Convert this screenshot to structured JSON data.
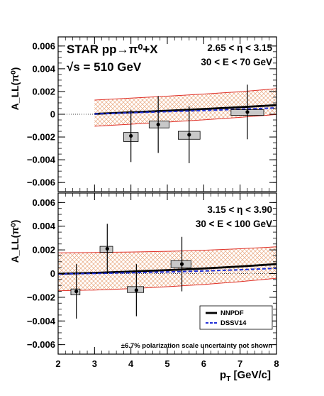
{
  "chart_data": [
    {
      "type": "scatter",
      "panel": "top",
      "title_lines": [
        "STAR pp→π⁰+X",
        "√s = 510 GeV"
      ],
      "annotation_lines": [
        "2.65 < η < 3.15",
        "30 < E < 70 GeV"
      ],
      "ylabel": "A_LL(π⁰)",
      "ylim": [
        -0.0068,
        0.0068
      ],
      "yticks": [
        "0.006",
        "0.004",
        "0.002",
        "0",
        "−0.002",
        "−0.004",
        "−0.006"
      ],
      "ytick_values": [
        0.006,
        0.004,
        0.002,
        0,
        -0.002,
        -0.004,
        -0.006
      ],
      "series": [
        {
          "name": "data",
          "x": [
            4.0,
            4.75,
            5.6,
            7.2
          ],
          "y": [
            -0.0019,
            -0.0009,
            -0.0018,
            0.0002
          ],
          "stat_err": [
            0.0023,
            0.0025,
            0.0025,
            0.0024
          ],
          "sys_box": [
            {
              "x0": 3.8,
              "x1": 4.2,
              "y0": -0.0024,
              "y1": -0.0016
            },
            {
              "x0": 4.5,
              "x1": 5.05,
              "y0": -0.0012,
              "y1": -0.0006
            },
            {
              "x0": 5.3,
              "x1": 5.9,
              "y0": -0.0022,
              "y1": -0.0015
            },
            {
              "x0": 6.75,
              "x1": 7.65,
              "y0": -0.0001,
              "y1": 0.0004
            }
          ]
        }
      ],
      "theory": {
        "x": [
          3.0,
          4.0,
          5.0,
          6.0,
          7.0,
          8.0
        ],
        "nnpdf": [
          3e-05,
          0.00017,
          0.00031,
          0.00046,
          0.00062,
          0.0008
        ],
        "dssv14": [
          3e-05,
          0.00013,
          0.00023,
          0.00033,
          0.00044,
          0.00056
        ],
        "band_upper": [
          0.00125,
          0.00142,
          0.00159,
          0.00178,
          0.00198,
          0.00225
        ],
        "band_lower": [
          -0.00105,
          -0.00087,
          -0.00069,
          -0.00049,
          -0.00027,
          -2e-05
        ]
      },
      "zero_line_dotted_xmax": 3.0
    },
    {
      "type": "scatter",
      "panel": "bottom",
      "annotation_lines": [
        "3.15 < η < 3.90",
        "30 < E < 100 GeV"
      ],
      "ylabel": "A_LL(π⁰)",
      "xlabel": "p_T [GeV/c]",
      "xlim": [
        2,
        8
      ],
      "xticks": [
        "2",
        "3",
        "4",
        "5",
        "6",
        "7",
        "8"
      ],
      "xtick_values": [
        2,
        3,
        4,
        5,
        6,
        7,
        8
      ],
      "ylim": [
        -0.0068,
        0.0068
      ],
      "yticks": [
        "0.006",
        "0.004",
        "0.002",
        "0",
        "−0.002",
        "−0.004",
        "−0.006"
      ],
      "ytick_values": [
        0.006,
        0.004,
        0.002,
        0,
        -0.002,
        -0.004,
        -0.006
      ],
      "series": [
        {
          "name": "data",
          "x": [
            2.5,
            3.35,
            4.15,
            5.4
          ],
          "y": [
            -0.0015,
            0.0021,
            -0.0014,
            0.0008
          ],
          "stat_err": [
            0.0023,
            0.0021,
            0.0022,
            0.0023
          ],
          "sys_box": [
            {
              "x0": 2.35,
              "x1": 2.6,
              "y0": -0.0018,
              "y1": -0.0013
            },
            {
              "x0": 3.15,
              "x1": 3.5,
              "y0": 0.0018,
              "y1": 0.0023
            },
            {
              "x0": 3.9,
              "x1": 4.35,
              "y0": -0.0016,
              "y1": -0.0011
            },
            {
              "x0": 5.1,
              "x1": 5.65,
              "y0": 0.0005,
              "y1": 0.0011
            }
          ]
        }
      ],
      "theory": {
        "x": [
          2.0,
          3.0,
          4.0,
          5.0,
          6.0,
          7.0,
          8.0
        ],
        "nnpdf": [
          -2e-05,
          6e-05,
          0.00017,
          0.00029,
          0.00043,
          0.0006,
          0.0008
        ],
        "dssv14": [
          -3e-05,
          1e-05,
          7e-05,
          0.00014,
          0.00022,
          0.00032,
          0.00045
        ],
        "band_upper": [
          0.00175,
          0.00178,
          0.00182,
          0.00188,
          0.00197,
          0.0021,
          0.00226
        ],
        "band_lower": [
          -0.00145,
          -0.00139,
          -0.00127,
          -0.00111,
          -0.00092,
          -0.00068,
          -0.0004
        ]
      },
      "legend": {
        "placement": "bottom-right",
        "entries": [
          {
            "label": "NNPDF",
            "style": "solid"
          },
          {
            "label": "DSSV14",
            "style": "dashed"
          }
        ]
      },
      "footnote": "±6.7% polarization scale uncertainty not shown"
    }
  ],
  "colors": {
    "nnpdf": "#000000",
    "dssv14": "#1f2fd6",
    "band_edge": "#e0322a",
    "hatch": "#e8a880",
    "sys_box_fill": "#c8c8c8"
  }
}
